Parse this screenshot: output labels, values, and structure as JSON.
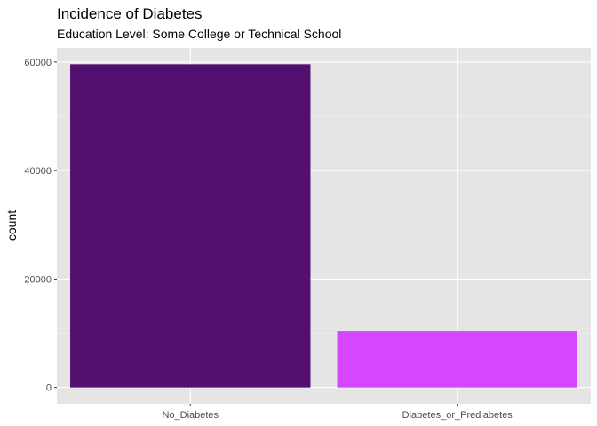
{
  "chart_data": {
    "type": "bar",
    "title": "Incidence of Diabetes",
    "subtitle": "Education Level: Some College or Technical School",
    "xlabel": "",
    "ylabel": "count",
    "categories": [
      "No_Diabetes",
      "Diabetes_or_Prediabetes"
    ],
    "values": [
      59600,
      10400
    ],
    "bar_colors": [
      "#54106F",
      "#D646FF"
    ],
    "ylim": [
      -3000,
      62600
    ],
    "yticks": [
      0,
      20000,
      40000,
      60000
    ],
    "ytick_labels": [
      "0",
      "20000",
      "40000",
      "60000"
    ],
    "grid": true,
    "panel_background": "#E5E5E5",
    "grid_major_color": "#FFFFFF",
    "grid_minor_color": "#F2F2F2"
  }
}
